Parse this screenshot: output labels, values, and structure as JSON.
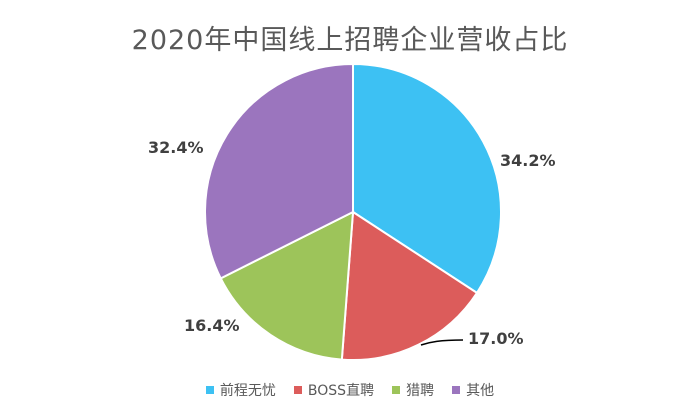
{
  "chart_data": {
    "type": "pie",
    "title": "2020年中国线上招聘企业营收占比",
    "categories": [
      "前程无忧",
      "BOSS直聘",
      "猎聘",
      "其他"
    ],
    "values": [
      34.2,
      17.0,
      16.4,
      32.4
    ],
    "value_labels": [
      "34.2%",
      "17.0%",
      "16.4%",
      "32.4%"
    ],
    "colors": [
      "#3dc1f3",
      "#dc5c5b",
      "#9dc45a",
      "#9b75be"
    ],
    "legend_position": "bottom",
    "start_angle": "12 o'clock",
    "direction": "clockwise"
  }
}
